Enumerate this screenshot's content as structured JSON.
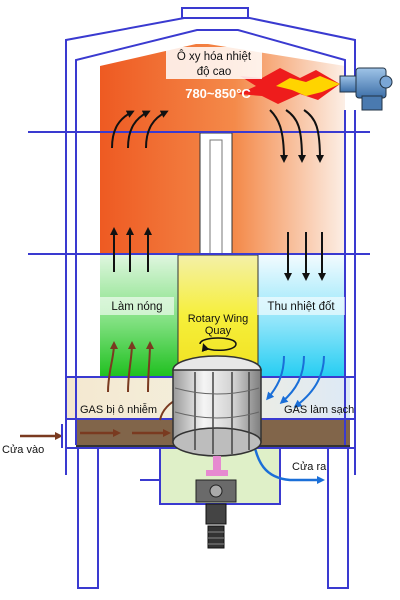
{
  "labels": {
    "oxidation": "Ô xy hóa nhiệt",
    "oxidation_line2": "độ cao",
    "temperature": "780~850°C",
    "heating": "Làm nóng",
    "heat_recovery": "Thu nhiệt đốt",
    "rotary": "Rotary Wing",
    "rotary_line2": "Quay",
    "polluted_gas": "GAS bị ô nhiễm",
    "clean_gas": "GAS làm sạch",
    "inlet": "Cửa vào",
    "outlet": "Cửa ra"
  },
  "colors": {
    "frame": "#3a3ad0",
    "chamber_hot": "#f0642a",
    "chamber_fade": "#fbe6d6",
    "heating_green": "#2bcc2b",
    "cooling_cyan": "#2cd0f0",
    "rotor_yellow": "#f3ef3c",
    "duct_brown": "#6b4a2a",
    "arrow_dark": "#111111",
    "arrow_brown": "#7a3a20",
    "arrow_blue": "#1a6fd8",
    "flame_red": "#ee1c1c",
    "flame_yellow": "#ffe600"
  }
}
